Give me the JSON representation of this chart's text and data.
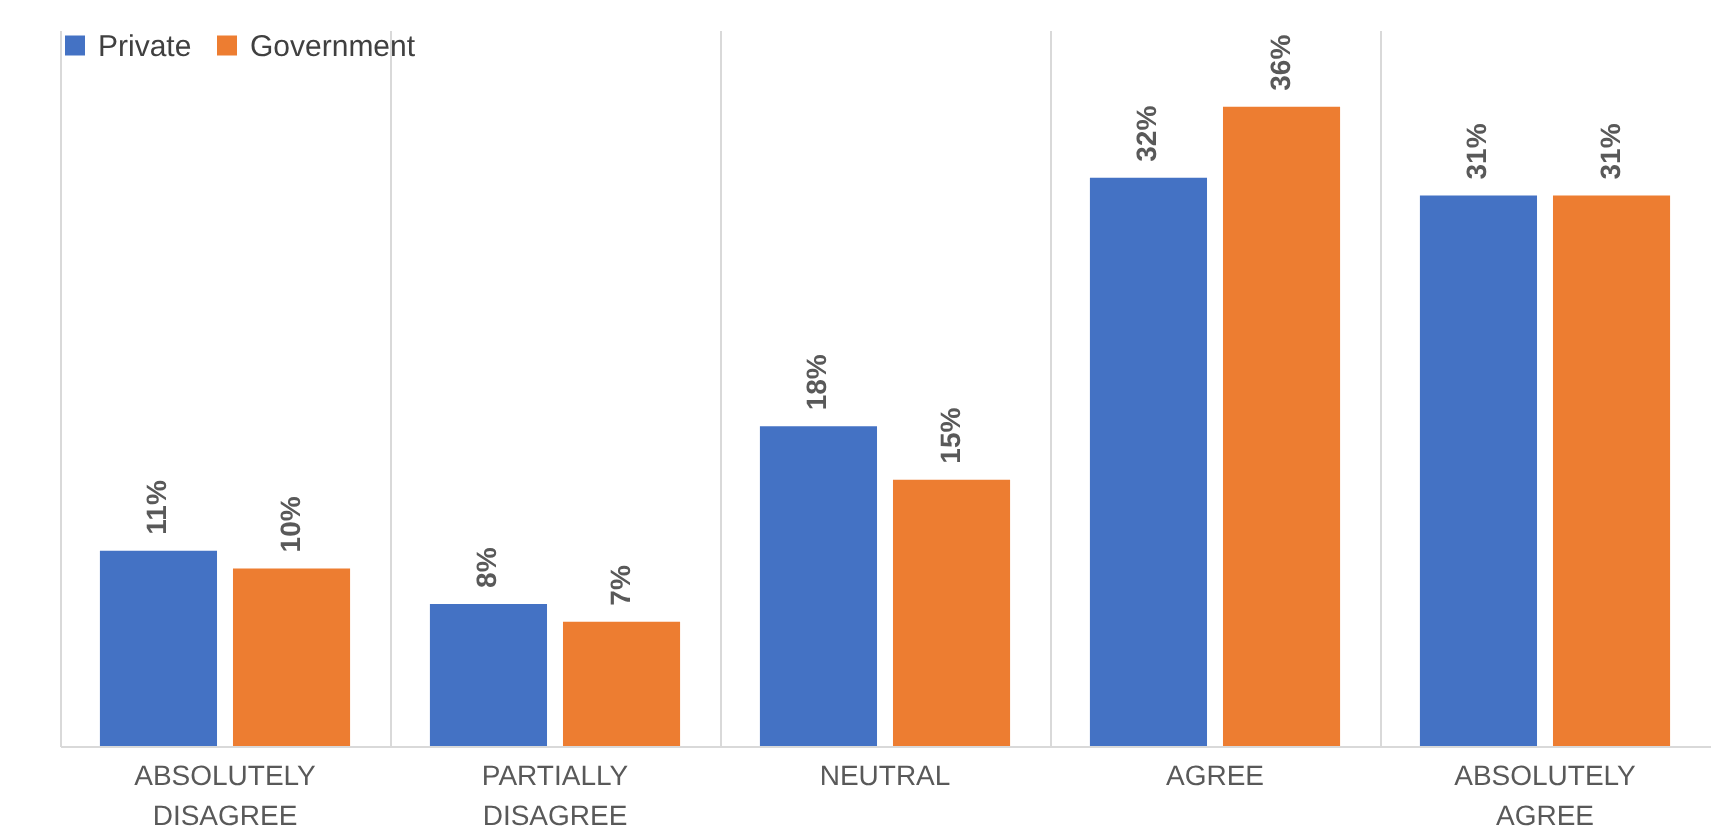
{
  "chart_data": {
    "type": "bar",
    "categories": [
      "ABSOLUTELY DISAGREE",
      "PARTIALLY DISAGREE",
      "NEUTRAL",
      "AGREE",
      "ABSOLUTELY AGREE"
    ],
    "series": [
      {
        "name": "Private",
        "color": "#4472c4",
        "values": [
          11,
          8,
          18,
          32,
          31
        ],
        "value_labels": [
          "11%",
          "8%",
          "18%",
          "32%",
          "31%"
        ]
      },
      {
        "name": "Government",
        "color": "#ed7d31",
        "values": [
          10,
          7,
          15,
          36,
          31
        ],
        "value_labels": [
          "10%",
          "7%",
          "15%",
          "36%",
          "31%"
        ]
      }
    ],
    "grid": "x",
    "legend": "top left"
  }
}
